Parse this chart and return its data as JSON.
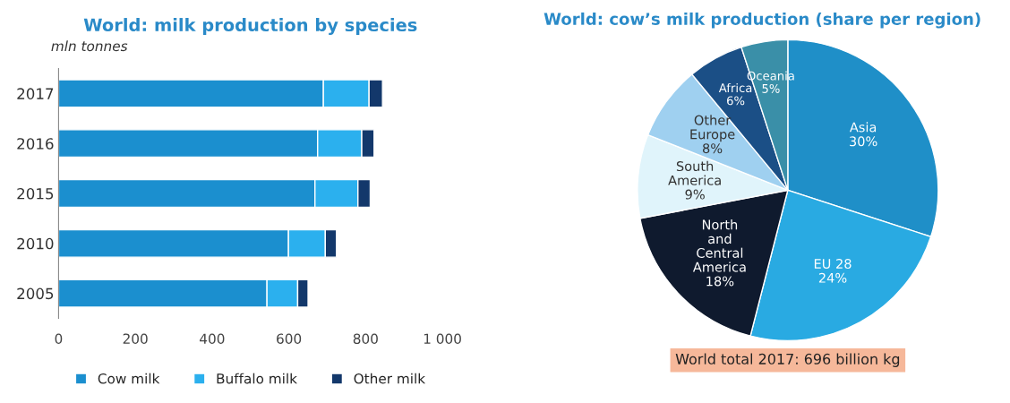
{
  "chart_data": [
    {
      "type": "bar",
      "title": "World: milk production by species",
      "xlabel": "mln tonnes",
      "orientation": "horizontal",
      "stacked": true,
      "categories": [
        "2017",
        "2016",
        "2015",
        "2010",
        "2005"
      ],
      "series": [
        {
          "name": "Cow milk",
          "color": "#1b8fcf",
          "values": [
            690,
            675,
            668,
            599,
            543
          ]
        },
        {
          "name": "Buffalo milk",
          "color": "#2bb0ee",
          "values": [
            119,
            115,
            112,
            96,
            80
          ]
        },
        {
          "name": "Other milk",
          "color": "#13386b",
          "values": [
            35,
            32,
            32,
            29,
            27
          ]
        }
      ],
      "xlim": [
        0,
        1000
      ],
      "xticks": [
        0,
        200,
        400,
        600,
        800,
        {
          "value": 1000,
          "label": "1 000"
        }
      ],
      "grid": false,
      "legend": "bottom"
    },
    {
      "type": "pie",
      "title": "World: cow’s milk production (share per region)",
      "categories": [
        "Asia",
        "EU 28",
        "North and Central America",
        "South America",
        "Other Europe",
        "Africa",
        "Oceania"
      ],
      "values": [
        30,
        24,
        18,
        9,
        8,
        6,
        5
      ],
      "colors": [
        "#1f8fc8",
        "#29aae2",
        "#0f1a2e",
        "#e0f4fb",
        "#9fd0f0",
        "#1b4f86",
        "#3a8fa8"
      ],
      "value_labels": [
        "30%",
        "24%",
        "18%",
        "9%",
        "8%",
        "6%",
        "5%"
      ],
      "annotations": [
        "World total 2017: 696 billion kg"
      ]
    }
  ]
}
